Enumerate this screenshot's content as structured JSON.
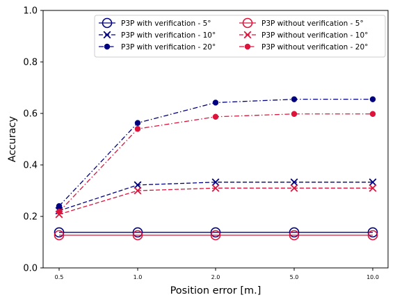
{
  "chart_data": {
    "type": "line",
    "xlabel": "Position error [m.]",
    "ylabel": "Accuracy",
    "categories": [
      "0.5",
      "1.0",
      "2.0",
      "5.0",
      "10.0"
    ],
    "ylim": [
      0.0,
      1.0
    ],
    "yticks": [
      "0.0",
      "0.2",
      "0.4",
      "0.6",
      "0.8",
      "1.0"
    ],
    "yticks_values": [
      0.0,
      0.2,
      0.4,
      0.6,
      0.8,
      1.0
    ],
    "grid": false,
    "legend_position": "top-right",
    "legend_columns": 2,
    "colors": {
      "with": "#000080",
      "without": "#dc143c"
    },
    "series": [
      {
        "name": "P3P with verification - 5°",
        "group": "with",
        "marker": "circle-open",
        "line": "solid",
        "values": [
          0.138,
          0.138,
          0.138,
          0.138,
          0.138
        ]
      },
      {
        "name": "P3P with verification - 10°",
        "group": "with",
        "marker": "x",
        "line": "dashed",
        "values": [
          0.222,
          0.322,
          0.333,
          0.333,
          0.333
        ]
      },
      {
        "name": "P3P with verification - 20°",
        "group": "with",
        "marker": "dot",
        "line": "dashdot",
        "values": [
          0.24,
          0.563,
          0.642,
          0.655,
          0.655
        ]
      },
      {
        "name": "P3P without verification - 5°",
        "group": "without",
        "marker": "circle-open",
        "line": "solid",
        "values": [
          0.127,
          0.127,
          0.127,
          0.127,
          0.127
        ]
      },
      {
        "name": "P3P without verification - 10°",
        "group": "without",
        "marker": "x",
        "line": "dashed",
        "values": [
          0.208,
          0.3,
          0.31,
          0.31,
          0.31
        ]
      },
      {
        "name": "P3P without verification - 20°",
        "group": "without",
        "marker": "dot",
        "line": "dashdot",
        "values": [
          0.218,
          0.54,
          0.587,
          0.598,
          0.598
        ]
      }
    ]
  }
}
